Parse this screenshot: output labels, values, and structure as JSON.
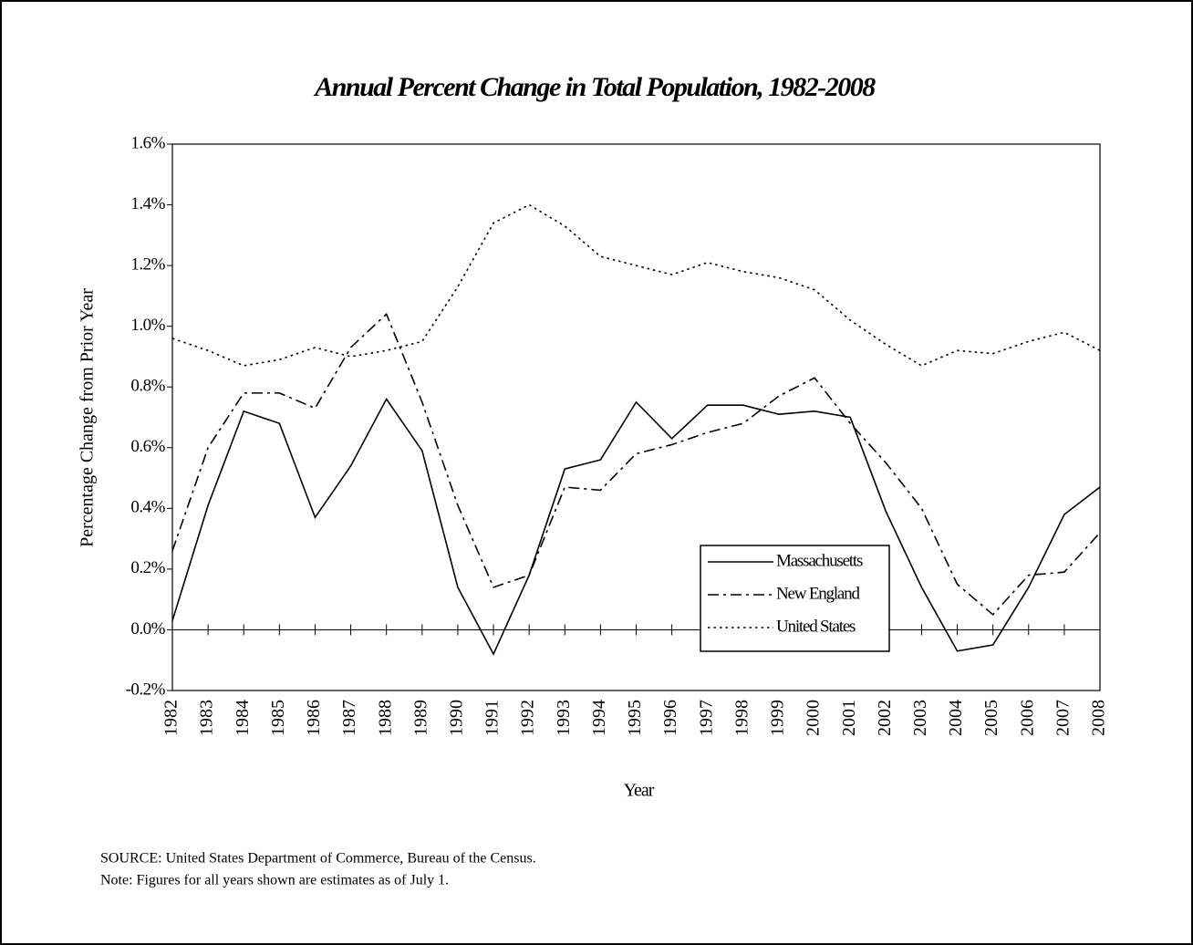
{
  "chart_data": {
    "type": "line",
    "title": "Annual Percent Change in Total Population, 1982-2008",
    "ylabel": "Percentage Change from Prior Year",
    "xlabel": "Year",
    "categories": [
      "1982",
      "1983",
      "1984",
      "1985",
      "1986",
      "1987",
      "1988",
      "1989",
      "1990",
      "1991",
      "1992",
      "1993",
      "1994",
      "1995",
      "1996",
      "1997",
      "1998",
      "1999",
      "2000",
      "2001",
      "2002",
      "2003",
      "2004",
      "2005",
      "2006",
      "2007",
      "2008"
    ],
    "series": [
      {
        "name": "Massachusetts",
        "color": "#000000",
        "linestyle": "solid",
        "values": [
          0.03,
          0.41,
          0.72,
          0.68,
          0.37,
          0.54,
          0.76,
          0.59,
          0.14,
          -0.08,
          0.18,
          0.53,
          0.56,
          0.75,
          0.63,
          0.74,
          0.74,
          0.71,
          0.72,
          0.7,
          0.39,
          0.14,
          -0.07,
          -0.05,
          0.14,
          0.38,
          0.47
        ]
      },
      {
        "name": "New England",
        "color": "#000000",
        "linestyle": "dashdot",
        "values": [
          0.26,
          0.6,
          0.78,
          0.78,
          0.73,
          0.93,
          1.04,
          0.75,
          0.41,
          0.14,
          0.18,
          0.47,
          0.46,
          0.58,
          0.61,
          0.65,
          0.68,
          0.77,
          0.83,
          0.68,
          0.55,
          0.4,
          0.15,
          0.05,
          0.18,
          0.19,
          0.32
        ]
      },
      {
        "name": "United States",
        "color": "#000000",
        "linestyle": "dotted",
        "values": [
          0.96,
          0.92,
          0.87,
          0.89,
          0.93,
          0.9,
          0.92,
          0.95,
          1.13,
          1.34,
          1.4,
          1.33,
          1.23,
          1.2,
          1.17,
          1.21,
          1.18,
          1.16,
          1.12,
          1.02,
          0.94,
          0.87,
          0.92,
          0.91,
          0.95,
          0.98,
          0.92
        ]
      }
    ],
    "ylim": [
      -0.2,
      1.6
    ],
    "yticks": [
      {
        "value": -0.2,
        "label": "-0.2%"
      },
      {
        "value": 0,
        "label": "0.0%"
      },
      {
        "value": 0.2,
        "label": "0.2%"
      },
      {
        "value": 0.4,
        "label": "0.4%"
      },
      {
        "value": 0.6,
        "label": "0.6%"
      },
      {
        "value": 0.8,
        "label": "0.8%"
      },
      {
        "value": 1.0,
        "label": "1.0%"
      },
      {
        "value": 1.2,
        "label": "1.2%"
      },
      {
        "value": 1.4,
        "label": "1.4%"
      },
      {
        "value": 1.6,
        "label": "1.6%"
      }
    ],
    "grid": false,
    "legend": "lower right",
    "source": "SOURCE:  United States Department of Commerce, Bureau of the Census.",
    "note": "Note:  Figures for all years shown are estimates as of July 1."
  }
}
